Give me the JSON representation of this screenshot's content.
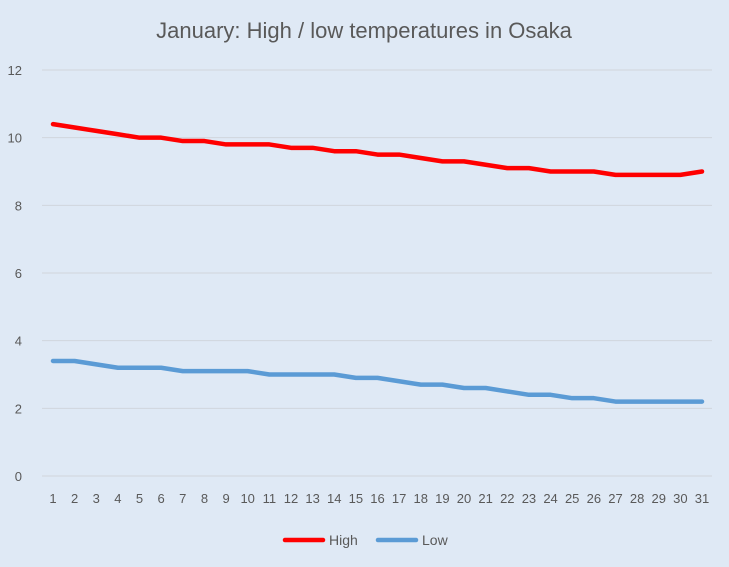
{
  "chart_data": {
    "type": "line",
    "title": "January: High / low temperatures in Osaka",
    "x": [
      1,
      2,
      3,
      4,
      5,
      6,
      7,
      8,
      9,
      10,
      11,
      12,
      13,
      14,
      15,
      16,
      17,
      18,
      19,
      20,
      21,
      22,
      23,
      24,
      25,
      26,
      27,
      28,
      29,
      30,
      31
    ],
    "ylim": [
      0,
      12
    ],
    "yticks": [
      0,
      2,
      4,
      6,
      8,
      10,
      12
    ],
    "grid": true,
    "legend_position": "bottom",
    "series": [
      {
        "name": "High",
        "color": "#ff0000",
        "values": [
          10.4,
          10.3,
          10.2,
          10.1,
          10.0,
          10.0,
          9.9,
          9.9,
          9.8,
          9.8,
          9.8,
          9.7,
          9.7,
          9.6,
          9.6,
          9.5,
          9.5,
          9.4,
          9.3,
          9.3,
          9.2,
          9.1,
          9.1,
          9.0,
          9.0,
          9.0,
          8.9,
          8.9,
          8.9,
          8.9,
          9.0
        ]
      },
      {
        "name": "Low",
        "color": "#5b9bd5",
        "values": [
          3.4,
          3.4,
          3.3,
          3.2,
          3.2,
          3.2,
          3.1,
          3.1,
          3.1,
          3.1,
          3.0,
          3.0,
          3.0,
          3.0,
          2.9,
          2.9,
          2.8,
          2.7,
          2.7,
          2.6,
          2.6,
          2.5,
          2.4,
          2.4,
          2.3,
          2.3,
          2.2,
          2.2,
          2.2,
          2.2,
          2.2
        ]
      }
    ]
  }
}
